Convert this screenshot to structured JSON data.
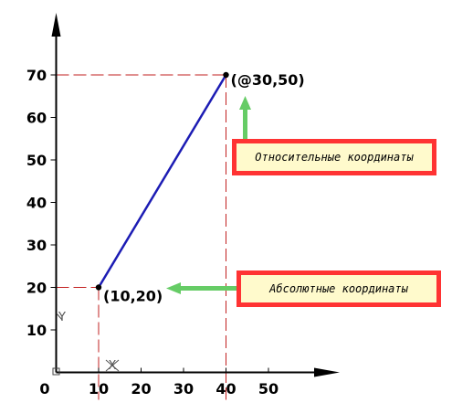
{
  "chart_data": {
    "type": "line",
    "xlim": [
      0,
      55
    ],
    "ylim": [
      0,
      77
    ],
    "x_ticks": [
      "0",
      "10",
      "20",
      "30",
      "40",
      "50"
    ],
    "y_ticks": [
      "10",
      "20",
      "30",
      "40",
      "50",
      "60",
      "70"
    ],
    "points": [
      {
        "x": 10,
        "y": 20,
        "label": "(10,20)"
      },
      {
        "x": 40,
        "y": 70,
        "label": "(@30,50)"
      }
    ],
    "axis_letters": {
      "y": "Y",
      "x": "X"
    },
    "callouts": {
      "relative": "Относительные координаты",
      "absolute": "Абсолютные координаты"
    }
  },
  "colors": {
    "segment": "#1c1cb4",
    "guide": "#c22020",
    "callout_fill": "#ff3333",
    "callout_inner": "#fffacc",
    "arrow": "#66cc66",
    "axis": "#000000"
  }
}
